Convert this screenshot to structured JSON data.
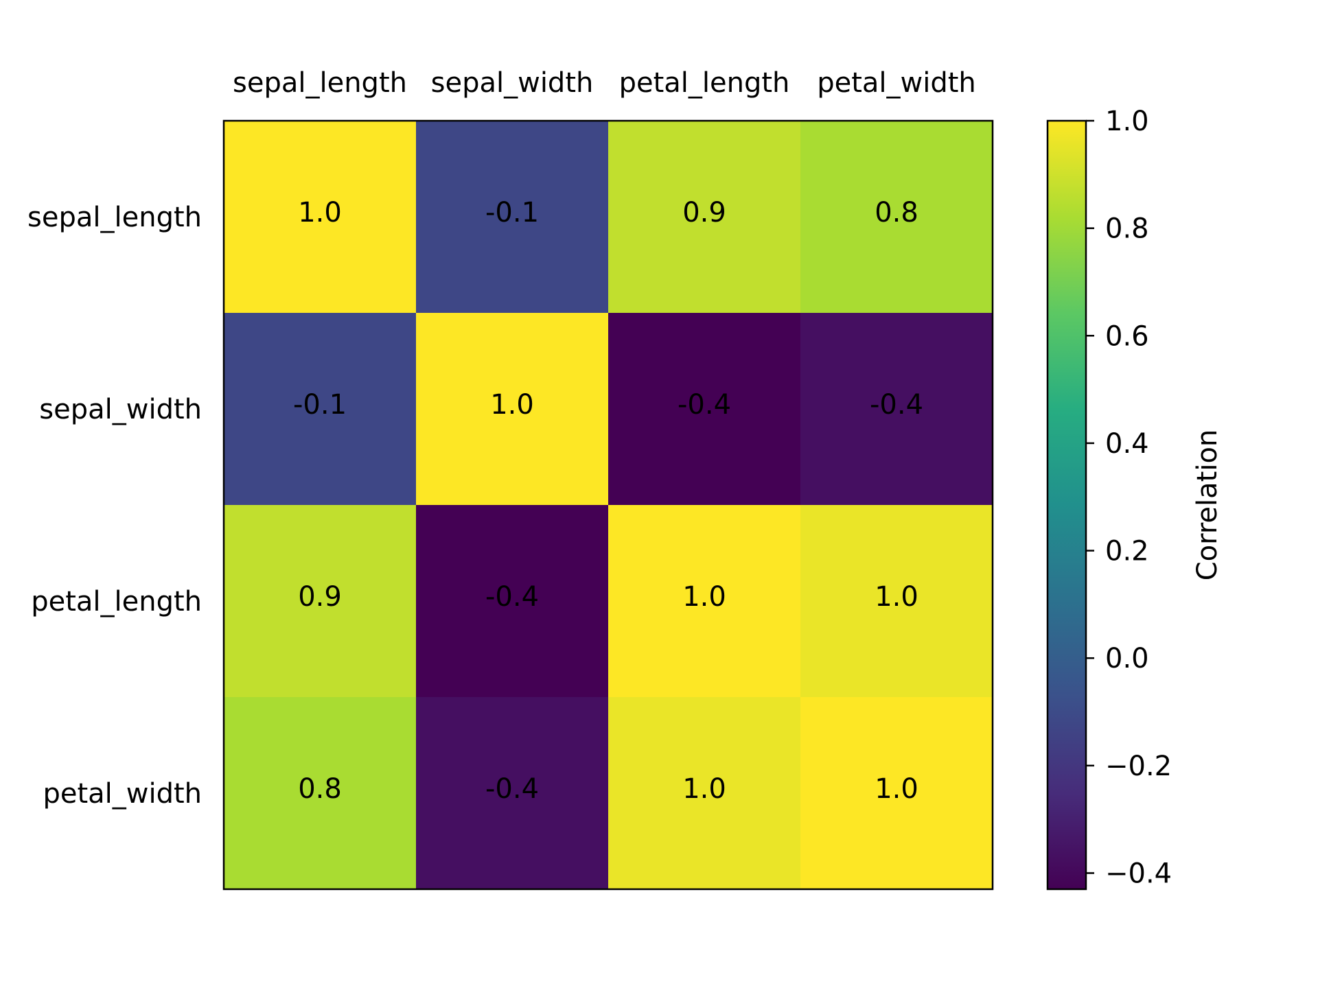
{
  "chart_data": {
    "type": "heatmap",
    "title": "",
    "x_categories": [
      "sepal_length",
      "sepal_width",
      "petal_length",
      "petal_width"
    ],
    "y_categories": [
      "sepal_length",
      "sepal_width",
      "petal_length",
      "petal_width"
    ],
    "values": [
      [
        1.0,
        -0.12,
        0.87,
        0.82
      ],
      [
        -0.12,
        1.0,
        -0.43,
        -0.37
      ],
      [
        0.87,
        -0.43,
        1.0,
        0.96
      ],
      [
        0.82,
        -0.37,
        0.96,
        1.0
      ]
    ],
    "cell_labels": [
      [
        "1.0",
        "-0.1",
        "0.9",
        "0.8"
      ],
      [
        "-0.1",
        "1.0",
        "-0.4",
        "-0.4"
      ],
      [
        "0.9",
        "-0.4",
        "1.0",
        "1.0"
      ],
      [
        "0.8",
        "-0.4",
        "1.0",
        "1.0"
      ]
    ],
    "x_axis_position": "top",
    "grid": false,
    "colormap": "viridis",
    "colorbar": {
      "label": "Correlation",
      "range": [
        -0.43,
        1.0
      ],
      "ticks": [
        1.0,
        0.8,
        0.6,
        0.4,
        0.2,
        0.0,
        -0.2,
        -0.4
      ],
      "tick_labels": [
        "1.0",
        "0.8",
        "0.6",
        "0.4",
        "0.2",
        "0.0",
        "−0.2",
        "−0.4"
      ],
      "position": "right"
    }
  }
}
